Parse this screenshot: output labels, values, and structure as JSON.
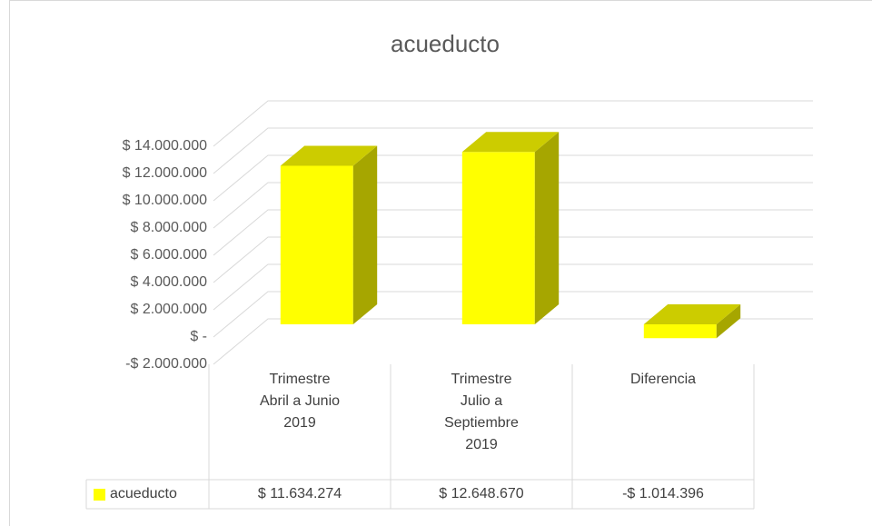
{
  "chart_data": {
    "type": "bar",
    "title": "acueducto",
    "categories": [
      "Trimestre\nAbril a Junio\n2019",
      "Trimestre\nJulio a\nSeptiembre\n2019",
      "Diferencia"
    ],
    "series": [
      {
        "name": "acueducto",
        "color": "#ffff00",
        "values": [
          11634274,
          12648670,
          -1014396
        ],
        "value_labels": [
          "$ 11.634.274",
          "$ 12.648.670",
          "-$ 1.014.396"
        ]
      }
    ],
    "ylim": [
      -2000000,
      14000000
    ],
    "yticks": [
      {
        "value": -2000000,
        "label": "-$ 2.000.000"
      },
      {
        "value": 0,
        "label": "$ -"
      },
      {
        "value": 2000000,
        "label": "$ 2.000.000"
      },
      {
        "value": 4000000,
        "label": "$ 4.000.000"
      },
      {
        "value": 6000000,
        "label": "$ 6.000.000"
      },
      {
        "value": 8000000,
        "label": "$ 8.000.000"
      },
      {
        "value": 10000000,
        "label": "$ 10.000.000"
      },
      {
        "value": 12000000,
        "label": "$ 12.000.000"
      },
      {
        "value": 14000000,
        "label": "$ 14.000.000"
      }
    ],
    "grid": true
  }
}
